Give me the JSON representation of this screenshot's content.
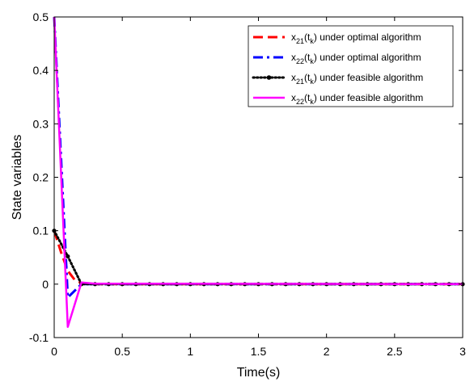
{
  "chart_data": {
    "type": "line",
    "xlabel": "Time(s)",
    "ylabel": "State variables",
    "xlim": [
      0,
      3
    ],
    "ylim": [
      -0.1,
      0.5
    ],
    "xticks": [
      "0",
      "0.5",
      "1",
      "1.5",
      "2",
      "2.5",
      "3"
    ],
    "yticks": [
      "-0.1",
      "0",
      "0.1",
      "0.2",
      "0.3",
      "0.4",
      "0.5"
    ],
    "xtick_values": [
      0,
      0.5,
      1,
      1.5,
      2,
      2.5,
      3
    ],
    "ytick_values": [
      -0.1,
      0,
      0.1,
      0.2,
      0.3,
      0.4,
      0.5
    ],
    "grid": false,
    "legend_placement": "top-right",
    "series": [
      {
        "var": "x",
        "sub": "21",
        "tail": " under optimal algorithm",
        "color": "#ff0000",
        "style": "dashed",
        "x": [
          0,
          0.05,
          0.1,
          0.15,
          0.2,
          0.3,
          3
        ],
        "y": [
          0.1,
          0.06,
          0.025,
          0.008,
          0.002,
          0.0,
          0.0
        ]
      },
      {
        "var": "x",
        "sub": "22",
        "tail": " under optimal algorithm",
        "color": "#0000ff",
        "style": "dashdot",
        "x": [
          0,
          0.1,
          0.2,
          0.3,
          3
        ],
        "y": [
          0.5,
          -0.025,
          0.0,
          0.0,
          0.0
        ]
      },
      {
        "var": "x",
        "sub": "21",
        "tail": " under feasible algorithm",
        "color": "#000000",
        "style": "dotted-marker",
        "x": [
          0,
          0.1,
          0.2,
          0.3,
          0.4,
          0.5,
          0.6,
          0.7,
          0.8,
          0.9,
          1.0,
          1.1,
          1.2,
          1.3,
          1.4,
          1.5,
          1.6,
          1.7,
          1.8,
          1.9,
          2.0,
          2.1,
          2.2,
          2.3,
          2.4,
          2.5,
          2.6,
          2.7,
          2.8,
          2.9,
          3.0
        ],
        "y": [
          0.1,
          0.052,
          0.0,
          0.0,
          0.0,
          0.0,
          0.0,
          0.0,
          0.0,
          0.0,
          0.0,
          0.0,
          0.0,
          0.0,
          0.0,
          0.0,
          0.0,
          0.0,
          0.0,
          0.0,
          0.0,
          0.0,
          0.0,
          0.0,
          0.0,
          0.0,
          0.0,
          0.0,
          0.0,
          0.0,
          0.0
        ]
      },
      {
        "var": "x",
        "sub": "22",
        "tail": " under feasible algorithm",
        "color": "#ff00ff",
        "style": "solid",
        "x": [
          0,
          0.1,
          0.2,
          0.3,
          3
        ],
        "y": [
          0.5,
          -0.08,
          0.003,
          0.001,
          0.0
        ]
      }
    ]
  }
}
